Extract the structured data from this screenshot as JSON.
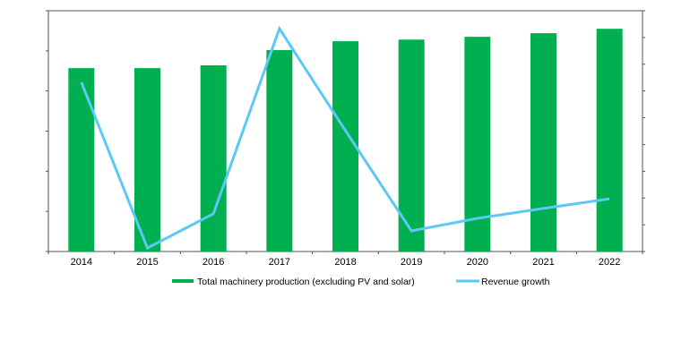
{
  "chart_data": {
    "type": "bar+line",
    "title": "",
    "xlabel": "",
    "ylabel": "",
    "categories": [
      "2014",
      "2015",
      "2016",
      "2017",
      "2018",
      "2019",
      "2020",
      "2021",
      "2022"
    ],
    "series": [
      {
        "name": "Total machinery production (excluding PV and solar)",
        "type": "bar",
        "axis": "left",
        "color": "#00b050",
        "values": [
          4.57,
          4.57,
          4.64,
          5.02,
          5.24,
          5.28,
          5.35,
          5.44,
          5.55
        ]
      },
      {
        "name": "Revenue growth",
        "type": "line",
        "axis": "right",
        "color": "#5bc8f5",
        "values": [
          6.32,
          0.13,
          1.41,
          8.33,
          4.52,
          0.77,
          1.24,
          1.61,
          1.97
        ]
      }
    ],
    "left_axis": {
      "ylim": [
        0,
        6
      ],
      "tick_count": 6,
      "tick_labels_shown": false
    },
    "right_axis": {
      "ylim": [
        0,
        9
      ],
      "tick_count": 9,
      "tick_labels_shown": false
    },
    "grid": false,
    "legend_placement": "bottom"
  }
}
